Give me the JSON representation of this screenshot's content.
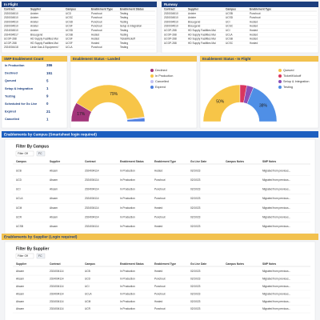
{
  "in_flight": {
    "title": "In Flight",
    "columns": [
      "Contract",
      "Supplier",
      "Campus",
      "Enablement Type",
      "Enablement Status"
    ],
    "rows": [
      [
        "2020004510",
        "Anixter",
        "UCD",
        "Punchout",
        "Testing"
      ],
      [
        "2020004510",
        "Anixter",
        "UCSC",
        "Punchout",
        "Testing"
      ],
      [
        "2020004510",
        "Anixter",
        "UCSD",
        "Punchout",
        "Testing"
      ],
      [
        "2020004510",
        "Anixter",
        "UCSF",
        "Punchout",
        "Setup & Integration"
      ],
      [
        "2024004510",
        "Anixter",
        "UCSD",
        "Punchout",
        "Testing"
      ],
      [
        "2024004517",
        "BioLegend",
        "UCSB",
        "Hosted",
        "Testing"
      ],
      [
        "UCOP-288",
        "HD Supply Facilities Mai",
        "UCSF",
        "Hosted",
        "Ticket/Kickoff"
      ],
      [
        "UCOP-288",
        "HD Supply Facilities Mai",
        "UCSF",
        "Hosted",
        "Testing"
      ],
      [
        "2024004418",
        "Linde Gas & Equipment /",
        "UCLA",
        "Punchout",
        "Testing"
      ]
    ]
  },
  "runway": {
    "title": "Runway",
    "columns": [
      "Contract",
      "Supplier",
      "Campus",
      "Enablement Type"
    ],
    "rows": [
      [
        "2020004510",
        "Anixter",
        "UCSB",
        "Punchout"
      ],
      [
        "2020004510",
        "Anixter",
        "UCSD",
        "Punchout"
      ],
      [
        "2020004510",
        "BioLegend",
        "UCI",
        "Hosted"
      ],
      [
        "2020004510",
        "BioLegend",
        "UCSC",
        "Hosted"
      ],
      [
        "UCOP-288",
        "HD Supply Facilities Mai",
        "UCI",
        "Hosted"
      ],
      [
        "UCOP-288",
        "HD Supply Facilities Mai",
        "UCLA",
        "Hosted"
      ],
      [
        "UCOP-288",
        "HD Supply Facilities Mai",
        "UCSB",
        "Hosted"
      ],
      [
        "UCOP-288",
        "HD Supply Facilities Mai",
        "UCSC",
        "Hosted"
      ]
    ]
  },
  "smp_count": {
    "title": "SMP Enablement Count",
    "labels": [
      "In Production",
      "Declined",
      "Queued",
      "Setup & Integration",
      "Testing",
      "Scheduled for Go Live",
      "Expired",
      "Cancelled"
    ],
    "values": [
      386,
      151,
      5,
      1,
      9,
      0,
      21,
      1
    ]
  },
  "landed_chart": {
    "type": "half-donut",
    "title": "Enablement Status - Landed",
    "categories": [
      "Declined",
      "In Production",
      "Cancelled",
      "Expired"
    ],
    "values": [
      17,
      79,
      1,
      3
    ],
    "value_labels": [
      "17%",
      "79%",
      null,
      null
    ],
    "colors": [
      "#a2357a",
      "#f7c548",
      "#c6c3f2",
      "#4f7fe0"
    ]
  },
  "in_flight_chart": {
    "type": "half-donut",
    "title": "Enablement Status - In Flight",
    "categories": [
      "Queued",
      "Ticket/Kickoff",
      "Setup & Integration",
      "Testing"
    ],
    "values": [
      50,
      6,
      6,
      38
    ],
    "value_labels": [
      "50%",
      null,
      null,
      "38%"
    ],
    "colors": [
      "#f7c548",
      "#d9365f",
      "#8b4fb8",
      "#4f8fe6"
    ]
  },
  "by_campus": {
    "title": "Enablements by Campus (Smartsheet login required)",
    "filter_title": "Filter By Campus",
    "filter_state": "Filter Off",
    "filter_tag": "FC",
    "columns": [
      "Campus",
      "Supplier",
      "Contract",
      "Enablement Status",
      "Enablement Type",
      "Go Live Date",
      "Campus Notes",
      "SMP Notes"
    ],
    "rows": [
      [
        "UCB",
        "Abcam",
        "2024004114",
        "In Production",
        "Hosted",
        "02/10/23",
        "Migrated from previous..."
      ],
      [
        "UCD",
        "Abcam",
        "2024004114",
        "In Production",
        "Punchout",
        "02/10/23",
        "Migrated from previous..."
      ],
      [
        "UCI",
        "Abcam",
        "2024004114",
        "In Production",
        "Punchout",
        "02/10/23",
        "Migrated from previous..."
      ],
      [
        "UCLA",
        "Abcam",
        "2024004114",
        "In Production",
        "Punchout",
        "02/10/23",
        "Migrated from previous..."
      ],
      [
        "UCM",
        "Abcam",
        "2024004114",
        "In Production",
        "Hosted",
        "02/10/23",
        "Migrated from previous..."
      ],
      [
        "UCR",
        "Abcam",
        "2024004114",
        "In Production",
        "Punchout",
        "02/10/23",
        "Migrated from previous..."
      ],
      [
        "UCSB",
        "Abcam",
        "2024004114",
        "In Production",
        "Hosted",
        "02/10/23",
        "Migrated from previous..."
      ]
    ]
  },
  "by_supplier": {
    "title": "Enablements by Supplier (Login required)",
    "filter_title": "Filter By Supplier",
    "filter_state": "Filter Off",
    "filter_tag": "FC",
    "columns": [
      "Supplier",
      "Contract",
      "Campus",
      "Enablement Status",
      "Enablement Type",
      "Go Live Date",
      "Campus Notes",
      "SMP Notes"
    ],
    "rows": [
      [
        "Abcam",
        "2024004114",
        "UCB",
        "In Production",
        "Hosted",
        "02/10/23",
        "Migrated from previous..."
      ],
      [
        "Abcam",
        "2024004114",
        "UCD",
        "In Production",
        "Punchout",
        "02/10/23",
        "Migrated from previous..."
      ],
      [
        "Abcam",
        "2024004114",
        "UCI",
        "In Production",
        "Punchout",
        "02/10/23",
        "Migrated from previous..."
      ],
      [
        "Abcam",
        "2024004114",
        "UCLA",
        "In Production",
        "Punchout",
        "02/10/23",
        "Migrated from previous..."
      ],
      [
        "Abcam",
        "2024004114",
        "UCM",
        "In Production",
        "Hosted",
        "02/10/23",
        "Migrated from previous..."
      ],
      [
        "Abcam",
        "2024004114",
        "UCR",
        "In Production",
        "Punchout",
        "02/10/23",
        "Migrated from previous..."
      ]
    ]
  }
}
